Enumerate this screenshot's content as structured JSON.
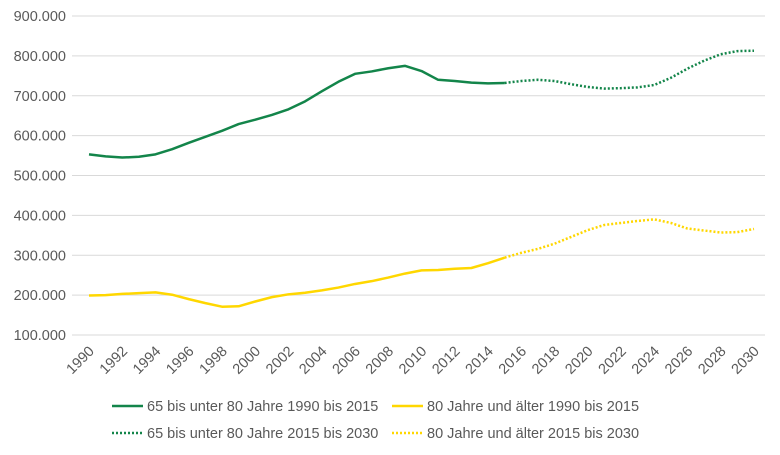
{
  "chart_data": {
    "type": "line",
    "title": "",
    "xlabel": "",
    "ylabel": "",
    "ylim": [
      100000,
      900000
    ],
    "yticks": [
      "100.000",
      "200.000",
      "300.000",
      "400.000",
      "500.000",
      "600.000",
      "700.000",
      "800.000",
      "900.000"
    ],
    "xticks": [
      "1990",
      "1992",
      "1994",
      "1996",
      "1998",
      "2000",
      "2002",
      "2004",
      "2006",
      "2008",
      "2010",
      "2012",
      "2014",
      "2016",
      "2018",
      "2020",
      "2022",
      "2024",
      "2026",
      "2028",
      "2030"
    ],
    "grid": true,
    "legend_position": "bottom",
    "series": [
      {
        "name": "65 bis unter 80 Jahre 1990 bis 2015",
        "color": "#13854a",
        "style": "solid",
        "x": [
          1990,
          1991,
          1992,
          1993,
          1994,
          1995,
          1996,
          1997,
          1998,
          1999,
          2000,
          2001,
          2002,
          2003,
          2004,
          2005,
          2006,
          2007,
          2008,
          2009,
          2010,
          2011,
          2012,
          2013,
          2014,
          2015
        ],
        "values": [
          553000,
          548000,
          545000,
          547000,
          553000,
          566000,
          582000,
          597000,
          612000,
          629000,
          640000,
          652000,
          666000,
          686000,
          711000,
          735000,
          755000,
          761000,
          769000,
          775000,
          762000,
          740000,
          737000,
          733000,
          731000,
          732000
        ]
      },
      {
        "name": "80 Jahre und älter 1990 bis 2015",
        "color": "#ffd700",
        "style": "solid",
        "x": [
          1990,
          1991,
          1992,
          1993,
          1994,
          1995,
          1996,
          1997,
          1998,
          1999,
          2000,
          2001,
          2002,
          2003,
          2004,
          2005,
          2006,
          2007,
          2008,
          2009,
          2010,
          2011,
          2012,
          2013,
          2014,
          2015
        ],
        "values": [
          199000,
          200000,
          203000,
          205000,
          207000,
          201000,
          190000,
          180000,
          171000,
          172000,
          184000,
          195000,
          202000,
          206000,
          212000,
          219000,
          228000,
          235000,
          244000,
          254000,
          262000,
          263000,
          266000,
          268000,
          280000,
          294000
        ]
      },
      {
        "name": "65 bis unter 80 Jahre 2015 bis 2030",
        "color": "#13854a",
        "style": "dotted",
        "x": [
          2015,
          2016,
          2017,
          2018,
          2019,
          2020,
          2021,
          2022,
          2023,
          2024,
          2025,
          2026,
          2027,
          2028,
          2029,
          2030
        ],
        "values": [
          732000,
          737000,
          740000,
          737000,
          729000,
          722000,
          718000,
          719000,
          721000,
          727000,
          745000,
          768000,
          788000,
          804000,
          812000,
          813000
        ]
      },
      {
        "name": "80 Jahre und älter 2015 bis 2030",
        "color": "#ffd700",
        "style": "dotted",
        "x": [
          2015,
          2016,
          2017,
          2018,
          2019,
          2020,
          2021,
          2022,
          2023,
          2024,
          2025,
          2026,
          2027,
          2028,
          2029,
          2030
        ],
        "values": [
          294000,
          306000,
          316000,
          329000,
          346000,
          363000,
          376000,
          381000,
          386000,
          390000,
          381000,
          367000,
          362000,
          357000,
          358000,
          366000
        ]
      }
    ]
  }
}
